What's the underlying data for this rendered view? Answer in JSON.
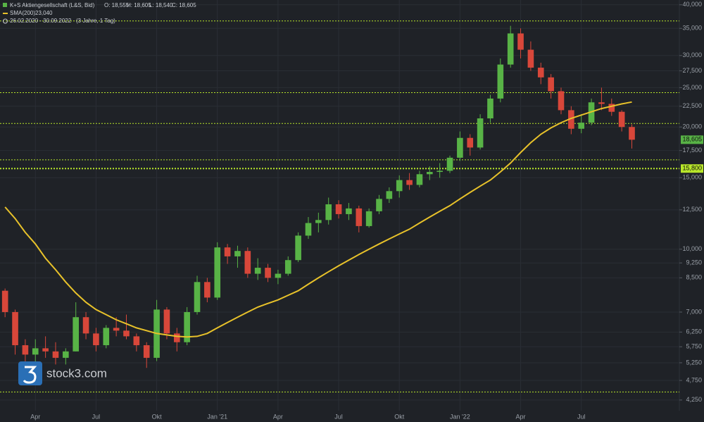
{
  "chart_data": {
    "type": "candlestick",
    "title": "K+S Aktiengesellschaft (L&S, Bid)",
    "ohlc_labels": [
      "O: 18,555",
      "H: 18,605",
      "L: 18,540",
      "C: 18,605"
    ],
    "range": "26.02.2020 - 30.09.2022",
    "interval": "(3 Jahre, 1 Tag)",
    "watermark": "stock3.com",
    "categories": [
      null,
      null,
      null,
      "Apr",
      null,
      null,
      null,
      null,
      null,
      "Jul",
      null,
      null,
      null,
      null,
      null,
      "Okt",
      null,
      null,
      null,
      null,
      null,
      "Jan '21",
      null,
      null,
      null,
      null,
      null,
      "Apr",
      null,
      null,
      null,
      null,
      null,
      "Jul",
      null,
      null,
      null,
      null,
      null,
      "Okt",
      null,
      null,
      null,
      null,
      null,
      "Jan '22",
      null,
      null,
      null,
      null,
      null,
      "Apr",
      null,
      null,
      null,
      null,
      null,
      "Jul",
      null,
      null,
      null,
      null,
      null
    ],
    "open": [
      7.9,
      7.0,
      5.8,
      5.5,
      5.7,
      5.6,
      5.4,
      5.6,
      6.8,
      6.2,
      5.8,
      6.4,
      6.3,
      6.1,
      5.8,
      5.4,
      7.1,
      6.2,
      5.9,
      7.0,
      8.3,
      7.6,
      10.1,
      9.6,
      9.9,
      8.7,
      9.0,
      8.5,
      8.7,
      9.4,
      10.8,
      11.6,
      11.8,
      12.9,
      12.2,
      12.6,
      11.4,
      12.4,
      13.3,
      13.9,
      14.8,
      14.4,
      15.3,
      15.5,
      15.6,
      16.8,
      18.8,
      17.8,
      21.0,
      23.5,
      28.5,
      34.0,
      31.0,
      28.0,
      26.5,
      24.5,
      22.0,
      19.8,
      20.5,
      23.0,
      22.8,
      21.8,
      20.0
    ],
    "high": [
      8.0,
      7.1,
      6.0,
      6.0,
      6.1,
      5.9,
      5.7,
      7.4,
      7.0,
      6.4,
      6.5,
      6.8,
      6.9,
      6.2,
      5.9,
      7.5,
      7.2,
      6.4,
      7.2,
      8.6,
      8.5,
      10.4,
      10.3,
      10.2,
      10.1,
      9.5,
      9.2,
      8.9,
      9.6,
      11.0,
      12.0,
      12.3,
      13.4,
      13.2,
      13.0,
      12.8,
      12.6,
      13.6,
      14.2,
      15.2,
      15.4,
      15.6,
      16.0,
      16.3,
      17.0,
      19.5,
      19.2,
      21.5,
      24.0,
      29.5,
      35.5,
      35.0,
      32.5,
      28.8,
      27.0,
      25.0,
      22.5,
      21.5,
      23.5,
      25.0,
      23.5,
      22.0,
      20.3
    ],
    "low": [
      6.8,
      5.5,
      4.65,
      5.2,
      5.4,
      5.2,
      5.2,
      5.6,
      6.0,
      5.6,
      5.7,
      6.1,
      6.0,
      5.6,
      5.1,
      5.3,
      6.0,
      5.6,
      5.8,
      6.9,
      7.4,
      7.5,
      9.2,
      9.0,
      8.5,
      8.4,
      8.3,
      8.2,
      8.6,
      9.3,
      10.6,
      11.0,
      11.5,
      11.9,
      11.8,
      11.0,
      11.3,
      12.2,
      13.0,
      13.4,
      14.0,
      14.2,
      14.8,
      15.0,
      15.4,
      16.5,
      17.0,
      17.6,
      20.5,
      23.0,
      28.0,
      29.5,
      27.5,
      25.5,
      23.5,
      21.5,
      19.2,
      19.3,
      20.2,
      22.0,
      21.3,
      19.5,
      17.7
    ],
    "close": [
      7.0,
      5.8,
      5.5,
      5.7,
      5.6,
      5.4,
      5.6,
      6.8,
      6.2,
      5.8,
      6.4,
      6.3,
      6.1,
      5.8,
      5.4,
      7.1,
      6.2,
      5.9,
      7.0,
      8.3,
      7.6,
      10.1,
      9.6,
      9.9,
      8.7,
      9.0,
      8.5,
      8.7,
      9.4,
      10.8,
      11.6,
      11.8,
      12.9,
      12.2,
      12.6,
      11.4,
      12.4,
      13.3,
      13.9,
      14.8,
      14.4,
      15.3,
      15.5,
      15.6,
      16.8,
      18.8,
      17.8,
      21.0,
      23.5,
      28.5,
      34.0,
      31.0,
      28.0,
      26.5,
      24.5,
      22.0,
      19.8,
      20.5,
      23.0,
      22.8,
      21.8,
      20.0,
      18.605
    ],
    "up_color": "#58b346",
    "down_color": "#d8473a",
    "sma": {
      "name": "SMA(200)",
      "last_value": 23.04,
      "last_label": "23,040",
      "color": "#e8c22a",
      "values": [
        12.7,
        11.9,
        11.0,
        10.3,
        9.5,
        8.9,
        8.3,
        7.8,
        7.4,
        7.1,
        6.9,
        6.7,
        6.55,
        6.4,
        6.3,
        6.2,
        6.15,
        6.1,
        6.08,
        6.1,
        6.2,
        6.4,
        6.6,
        6.8,
        7.0,
        7.2,
        7.35,
        7.5,
        7.7,
        7.9,
        8.2,
        8.5,
        8.8,
        9.1,
        9.4,
        9.7,
        10.0,
        10.3,
        10.6,
        10.9,
        11.2,
        11.6,
        12.0,
        12.4,
        12.8,
        13.3,
        13.8,
        14.3,
        14.8,
        15.5,
        16.3,
        17.3,
        18.3,
        19.2,
        19.9,
        20.5,
        21.0,
        21.4,
        21.8,
        22.2,
        22.5,
        22.8,
        23.04
      ]
    },
    "hlines": {
      "color": "#b8e62a",
      "values": [
        36.5,
        24.3,
        20.4,
        16.6,
        15.8,
        4.45
      ]
    },
    "price_labels": [
      {
        "value": 18.605,
        "label": "18,605"
      },
      {
        "value": 15.8,
        "label": "15,800"
      }
    ],
    "log_scale": true,
    "grid": true,
    "ylim": [
      4.0,
      41.1
    ],
    "yticks": [
      {
        "value": 4.25,
        "label": "4,250"
      },
      {
        "value": 4.75,
        "label": "4,750"
      },
      {
        "value": 5.25,
        "label": "5,250"
      },
      {
        "value": 5.75,
        "label": "5,750"
      },
      {
        "value": 6.25,
        "label": "6,250"
      },
      {
        "value": 7,
        "label": "7,000"
      },
      {
        "value": 8.5,
        "label": "8,500"
      },
      {
        "value": 9.25,
        "label": "9,250"
      },
      {
        "value": 10,
        "label": "10,000"
      },
      {
        "value": 12.5,
        "label": "12,500"
      },
      {
        "value": 15,
        "label": "15,000"
      },
      {
        "value": 17.5,
        "label": "17,500"
      },
      {
        "value": 20,
        "label": "20,000"
      },
      {
        "value": 22.5,
        "label": "22,500"
      },
      {
        "value": 25,
        "label": "25,000"
      },
      {
        "value": 27.5,
        "label": "27,500"
      },
      {
        "value": 30,
        "label": "30,000"
      },
      {
        "value": 35,
        "label": "35,000"
      },
      {
        "value": 40,
        "label": "40,000"
      }
    ]
  }
}
